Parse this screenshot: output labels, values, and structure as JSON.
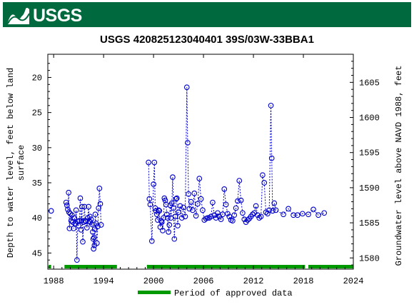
{
  "brand": {
    "logo_text": "USGS",
    "banner_color": "#006a3e"
  },
  "chart_data": {
    "type": "scatter",
    "title": "USGS 420825123040401 39S/03W-33BBA1",
    "ylabel_left": "Depth to water level, feet below land surface",
    "ylabel_left_lines": [
      "Depth to water level, feet below land",
      "surface"
    ],
    "ylabel_right": "Groundwater level above NAVD 1988, feet",
    "x_range": [
      1987.3,
      2024
    ],
    "y_left_range_inverted": [
      16.7,
      47.3
    ],
    "y_right_range": [
      1578.4,
      1609.0
    ],
    "x_ticks": [
      "1988",
      "1994",
      "2000",
      "2006",
      "2012",
      "2018",
      "2024"
    ],
    "y_left_ticks": [
      "20",
      "25",
      "30",
      "35",
      "40",
      "45"
    ],
    "y_right_ticks": [
      "1580",
      "1585",
      "1590",
      "1595",
      "1600",
      "1605"
    ],
    "series_color": "#0000cc",
    "approved_color": "#009900",
    "legend": {
      "label": "Period of approved data",
      "placement": "bottom"
    },
    "approved_periods": [
      [
        1987.4,
        1987.7
      ],
      [
        1989.3,
        1995.6
      ],
      [
        1999.2,
        2018.2
      ],
      [
        2018.6,
        2024
      ]
    ],
    "gap_before": [
      1989.5,
      1999.4
    ],
    "points": [
      [
        1987.7,
        39.0
      ],
      [
        1989.5,
        37.8
      ],
      [
        1989.6,
        38.2
      ],
      [
        1989.7,
        38.8
      ],
      [
        1989.8,
        36.4
      ],
      [
        1989.85,
        39.2
      ],
      [
        1989.9,
        41.5
      ],
      [
        1990.0,
        39.4
      ],
      [
        1990.1,
        40.4
      ],
      [
        1990.2,
        39.6
      ],
      [
        1990.3,
        40.6
      ],
      [
        1990.4,
        41.5
      ],
      [
        1990.5,
        40.0
      ],
      [
        1990.6,
        40.8
      ],
      [
        1990.7,
        38.9
      ],
      [
        1990.8,
        46.0
      ],
      [
        1990.9,
        40.5
      ],
      [
        1991.0,
        41.1
      ],
      [
        1991.1,
        40.4
      ],
      [
        1991.2,
        37.2
      ],
      [
        1991.3,
        41.7
      ],
      [
        1991.35,
        40.4
      ],
      [
        1991.4,
        38.4
      ],
      [
        1991.5,
        43.4
      ],
      [
        1991.6,
        40.6
      ],
      [
        1991.7,
        38.4
      ],
      [
        1991.8,
        40.4
      ],
      [
        1991.9,
        40.5
      ],
      [
        1992.0,
        41.4
      ],
      [
        1992.1,
        40.0
      ],
      [
        1992.2,
        38.4
      ],
      [
        1992.3,
        40.5
      ],
      [
        1992.35,
        39.8
      ],
      [
        1992.4,
        40.6
      ],
      [
        1992.5,
        40.2
      ],
      [
        1992.6,
        40.9
      ],
      [
        1992.7,
        42.0
      ],
      [
        1992.75,
        43.0
      ],
      [
        1992.8,
        44.4
      ],
      [
        1992.85,
        42.8
      ],
      [
        1992.9,
        43.9
      ],
      [
        1992.95,
        41.6
      ],
      [
        1993.0,
        39.5
      ],
      [
        1993.1,
        40.8
      ],
      [
        1993.2,
        43.6
      ],
      [
        1993.3,
        41.2
      ],
      [
        1993.4,
        38.6
      ],
      [
        1993.5,
        35.8
      ],
      [
        1993.6,
        38.0
      ],
      [
        1993.7,
        41.0
      ],
      [
        1999.4,
        32.1
      ],
      [
        1999.5,
        37.3
      ],
      [
        1999.6,
        38.1
      ],
      [
        1999.8,
        43.3
      ],
      [
        2000.0,
        35.2
      ],
      [
        2000.1,
        32.1
      ],
      [
        2000.2,
        38.6
      ],
      [
        2000.3,
        39.0
      ],
      [
        2000.4,
        39.5
      ],
      [
        2000.5,
        40.3
      ],
      [
        2000.6,
        38.9
      ],
      [
        2000.7,
        39.0
      ],
      [
        2000.8,
        41.3
      ],
      [
        2000.9,
        40.4
      ],
      [
        2001.0,
        40.6
      ],
      [
        2001.1,
        41.8
      ],
      [
        2001.2,
        40.0
      ],
      [
        2001.3,
        37.2
      ],
      [
        2001.4,
        37.5
      ],
      [
        2001.5,
        38.1
      ],
      [
        2001.6,
        39.5
      ],
      [
        2001.7,
        40.0
      ],
      [
        2001.8,
        42.0
      ],
      [
        2001.9,
        41.0
      ],
      [
        2002.0,
        38.2
      ],
      [
        2002.1,
        40.0
      ],
      [
        2002.2,
        37.9
      ],
      [
        2002.3,
        34.2
      ],
      [
        2002.4,
        38.6
      ],
      [
        2002.5,
        43.0
      ],
      [
        2002.6,
        39.8
      ],
      [
        2002.7,
        37.3
      ],
      [
        2002.8,
        37.2
      ],
      [
        2002.9,
        41.1
      ],
      [
        2003.0,
        39.2
      ],
      [
        2003.2,
        38.3
      ],
      [
        2003.4,
        40.0
      ],
      [
        2003.6,
        38.5
      ],
      [
        2003.8,
        39.8
      ],
      [
        2004.0,
        21.4
      ],
      [
        2004.1,
        29.3
      ],
      [
        2004.2,
        36.6
      ],
      [
        2004.3,
        38.7
      ],
      [
        2004.5,
        37.7
      ],
      [
        2004.7,
        38.9
      ],
      [
        2004.9,
        36.5
      ],
      [
        2005.1,
        39.7
      ],
      [
        2005.3,
        38.0
      ],
      [
        2005.5,
        34.4
      ],
      [
        2005.7,
        37.3
      ],
      [
        2005.9,
        38.9
      ],
      [
        2006.1,
        40.3
      ],
      [
        2006.3,
        40.1
      ],
      [
        2006.5,
        40.0
      ],
      [
        2006.7,
        40.0
      ],
      [
        2006.9,
        39.8
      ],
      [
        2007.1,
        37.8
      ],
      [
        2007.3,
        39.6
      ],
      [
        2007.5,
        40.0
      ],
      [
        2007.7,
        39.3
      ],
      [
        2007.9,
        39.8
      ],
      [
        2008.1,
        40.2
      ],
      [
        2008.3,
        39.5
      ],
      [
        2008.5,
        35.9
      ],
      [
        2008.7,
        38.1
      ],
      [
        2008.9,
        39.4
      ],
      [
        2009.1,
        39.8
      ],
      [
        2009.3,
        40.3
      ],
      [
        2009.5,
        40.4
      ],
      [
        2009.7,
        39.6
      ],
      [
        2009.9,
        38.6
      ],
      [
        2010.1,
        37.6
      ],
      [
        2010.3,
        34.7
      ],
      [
        2010.5,
        37.5
      ],
      [
        2010.7,
        39.3
      ],
      [
        2010.9,
        40.2
      ],
      [
        2011.1,
        40.6
      ],
      [
        2011.3,
        40.3
      ],
      [
        2011.5,
        40.1
      ],
      [
        2011.7,
        39.8
      ],
      [
        2011.9,
        39.5
      ],
      [
        2012.1,
        39.3
      ],
      [
        2012.3,
        38.3
      ],
      [
        2012.5,
        39.6
      ],
      [
        2012.7,
        40.0
      ],
      [
        2012.9,
        39.8
      ],
      [
        2013.1,
        33.9
      ],
      [
        2013.3,
        35.0
      ],
      [
        2013.5,
        39.2
      ],
      [
        2013.7,
        39.4
      ],
      [
        2013.9,
        38.9
      ],
      [
        2014.1,
        24.0
      ],
      [
        2014.2,
        31.5
      ],
      [
        2014.3,
        39.0
      ],
      [
        2014.5,
        37.9
      ],
      [
        2014.7,
        38.9
      ],
      [
        2015.6,
        39.5
      ],
      [
        2016.2,
        38.7
      ],
      [
        2016.8,
        39.6
      ],
      [
        2017.3,
        39.6
      ],
      [
        2017.9,
        39.4
      ],
      [
        2018.6,
        39.5
      ],
      [
        2019.2,
        38.8
      ],
      [
        2019.8,
        39.6
      ],
      [
        2020.5,
        39.3
      ]
    ]
  }
}
